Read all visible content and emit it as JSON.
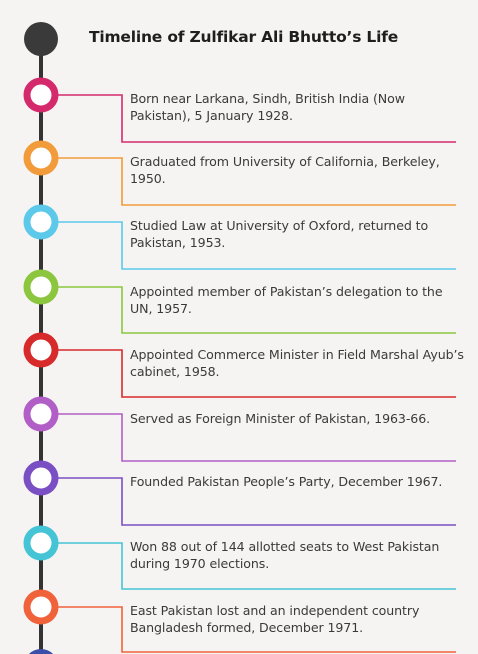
{
  "title": "Timeline of Zulfikar Ali Bhutto’s Life",
  "events": [
    {
      "text": "Born near Larkana, Sindh, British India (Now Pakistan), 5 January 1928.",
      "color": "#d42a6c"
    },
    {
      "text": "Graduated from University of California, Berkeley, 1950.",
      "color": "#f29b3a"
    },
    {
      "text": "Studied Law at University of Oxford, returned to Pakistan, 1953.",
      "color": "#5cc8ea"
    },
    {
      "text": "Appointed member of Pakistan’s delegation to the UN, 1957.",
      "color": "#8cc63f"
    },
    {
      "text": "Appointed Commerce Minister in Field Marshal Ayub’s cabinet, 1958.",
      "color": "#d72a2a"
    },
    {
      "text": "Served as Foreign Minister of Pakistan, 1963-66.",
      "color": "#b15fc6"
    },
    {
      "text": "Founded Pakistan People’s Party, December 1967.",
      "color": "#7b4fc4"
    },
    {
      "text": "Won 88 out of 144 allotted seats to West Pakistan during 1970 elections.",
      "color": "#44c4d4"
    },
    {
      "text": "East Pakistan lost and an independent country Bangladesh formed, December 1971.",
      "color": "#f0623a"
    }
  ]
}
